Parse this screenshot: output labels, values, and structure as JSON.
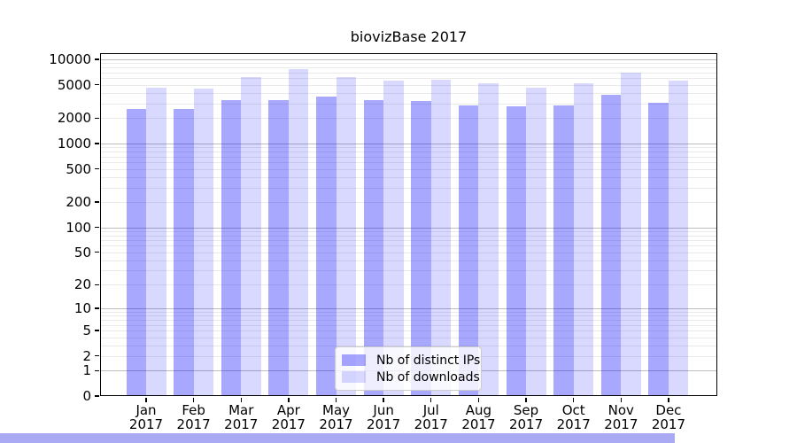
{
  "window": {
    "background": "#ffffff"
  },
  "colors": {
    "bar_distinct_ips": "rgba(0,0,255,0.34)",
    "bar_downloads": "rgba(0,0,255,0.15)",
    "grid_major": "#bdbdbd",
    "grid_minor": "#eaeaea",
    "axis": "#000000",
    "scrollbar": "#a9a9f4"
  },
  "chart_data": {
    "type": "bar",
    "title": "biovizBase 2017",
    "categories": [
      "Jan",
      "Feb",
      "Mar",
      "Apr",
      "May",
      "Jun",
      "Jul",
      "Aug",
      "Sep",
      "Oct",
      "Nov",
      "Dec"
    ],
    "year": "2017",
    "series": [
      {
        "name": "Nb of distinct IPs",
        "color": "rgba(0,0,255,0.34)",
        "values": [
          2600,
          2600,
          3300,
          3250,
          3600,
          3250,
          3200,
          2850,
          2750,
          2850,
          3800,
          3050
        ]
      },
      {
        "name": "Nb of downloads",
        "color": "rgba(0,0,255,0.15)",
        "values": [
          4600,
          4500,
          6150,
          7650,
          6150,
          5600,
          5700,
          5200,
          4600,
          5200,
          6950,
          5600
        ]
      }
    ],
    "yscale": "log10(value+1)",
    "y_ticks": [
      10000,
      5000,
      2000,
      1000,
      500,
      200,
      100,
      50,
      20,
      10,
      5,
      2,
      1,
      0
    ],
    "ylim": [
      0,
      11800
    ],
    "xlabel": "",
    "ylabel": "",
    "grid": true,
    "legend_position": "lower center"
  }
}
